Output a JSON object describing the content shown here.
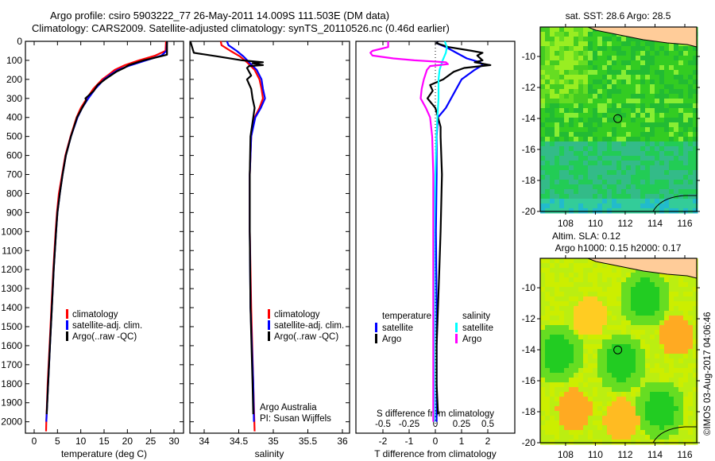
{
  "header": {
    "title_line1": "Argo profile: csiro 5903222_77 26-May-2011 14.009S 111.503E (DM data)",
    "title_line2": "Climatology: CARS2009. Satellite-adjusted climatology: synTS_20110526.nc (0.46d earlier)"
  },
  "colors": {
    "climatology": "#ff0000",
    "satellite": "#0000ff",
    "argo": "#000000",
    "salinity_satellite": "#00ffff",
    "salinity_argo": "#ff00ff",
    "land": "#ffcc99"
  },
  "chart_data": [
    {
      "id": "temperature",
      "type": "line",
      "xlabel": "temperature (deg C)",
      "ylabel": "",
      "xlim": [
        -2,
        32
      ],
      "ylim": [
        2060,
        0
      ],
      "xticks": [
        0,
        5,
        10,
        15,
        20,
        25,
        30
      ],
      "yticks": [
        0,
        100,
        200,
        300,
        400,
        500,
        600,
        700,
        800,
        900,
        1000,
        1100,
        1200,
        1300,
        1400,
        1500,
        1600,
        1700,
        1800,
        1900,
        2000
      ],
      "legend": [
        "climatology",
        "satellite-adj. clim.",
        "Argo(..raw -QC)"
      ],
      "legend_position": "center-left",
      "series": [
        {
          "name": "climatology",
          "color_key": "climatology",
          "depth": [
            0,
            50,
            75,
            100,
            125,
            150,
            175,
            200,
            250,
            300,
            350,
            400,
            500,
            600,
            700,
            800,
            900,
            1000,
            1200,
            1400,
            1600,
            1800,
            2000,
            2050
          ],
          "values": [
            28.3,
            28.2,
            26,
            22.5,
            19.5,
            17.3,
            16,
            14.6,
            12.7,
            11.3,
            10,
            9.1,
            7.8,
            6.7,
            6,
            5.3,
            4.9,
            4.6,
            4.1,
            3.7,
            3.3,
            2.9,
            2.6,
            2.55
          ]
        },
        {
          "name": "satellite-adj. clim.",
          "color_key": "satellite",
          "depth": [
            0,
            50,
            75,
            100,
            125,
            150,
            175,
            200,
            250,
            300,
            350,
            400,
            500,
            600,
            700,
            800,
            900,
            1000,
            1200,
            1400,
            1600,
            1800,
            2000
          ],
          "values": [
            28.5,
            28.4,
            27.3,
            24,
            20.8,
            18,
            16.4,
            15,
            13.1,
            11.6,
            10.3,
            9.3,
            7.9,
            6.8,
            6.1,
            5.5,
            5,
            4.7,
            4.2,
            3.8,
            3.4,
            3,
            2.6
          ]
        },
        {
          "name": "Argo(..raw -QC)",
          "color_key": "argo",
          "depth": [
            0,
            50,
            70,
            80,
            100,
            125,
            140,
            160,
            200,
            230,
            260,
            300,
            310,
            350,
            400,
            500,
            600,
            700,
            800,
            900,
            1000,
            1200,
            1400,
            1600,
            1800,
            1960
          ],
          "values": [
            28.5,
            28.5,
            28.5,
            27,
            23.5,
            20.3,
            19.3,
            17.6,
            15.2,
            13.6,
            12.8,
            11,
            11.2,
            10.3,
            9.2,
            7.9,
            6.8,
            6.1,
            5.5,
            5,
            4.7,
            4.2,
            3.8,
            3.4,
            3,
            2.7
          ]
        }
      ]
    },
    {
      "id": "salinity",
      "type": "line",
      "xlabel": "salinity",
      "xlim": [
        33.8,
        36.1
      ],
      "ylim": [
        2060,
        0
      ],
      "xticks": [
        34,
        34.5,
        35,
        35.5,
        36
      ],
      "legend": [
        "climatology",
        "satellite-adj. clim.",
        "Argo(..raw -QC)"
      ],
      "legend_position": "center-right",
      "annotation": [
        "Argo Australia",
        "PI: Susan Wijffels"
      ],
      "series": [
        {
          "name": "climatology",
          "color_key": "climatology",
          "depth": [
            0,
            20,
            50,
            80,
            110,
            150,
            200,
            250,
            300,
            350,
            400,
            500,
            700,
            1000,
            1400,
            1800,
            2050
          ],
          "values": [
            34.24,
            34.25,
            34.38,
            34.52,
            34.62,
            34.73,
            34.8,
            34.83,
            34.85,
            34.8,
            34.73,
            34.68,
            34.66,
            34.66,
            34.68,
            34.71,
            34.73
          ]
        },
        {
          "name": "satellite-adj. clim.",
          "color_key": "satellite",
          "depth": [
            0,
            20,
            50,
            80,
            110,
            150,
            200,
            250,
            300,
            350,
            400,
            500,
            700,
            1000,
            1400,
            1800,
            2000
          ],
          "values": [
            34.33,
            34.35,
            34.47,
            34.57,
            34.65,
            34.76,
            34.83,
            34.85,
            34.88,
            34.82,
            34.74,
            34.68,
            34.66,
            34.66,
            34.67,
            34.71,
            34.72
          ]
        },
        {
          "name": "Argo(..raw -QC)",
          "color_key": "argo",
          "depth": [
            0,
            60,
            80,
            100,
            110,
            115,
            125,
            130,
            140,
            180,
            200,
            250,
            300,
            350,
            400,
            500,
            700,
            1000,
            1400,
            1800,
            1960
          ],
          "values": [
            33.8,
            33.85,
            34.2,
            34.55,
            34.85,
            34.7,
            34.85,
            34.65,
            34.62,
            34.68,
            34.62,
            34.68,
            34.7,
            34.73,
            34.71,
            34.67,
            34.66,
            34.66,
            34.67,
            34.7,
            34.71
          ]
        }
      ]
    },
    {
      "id": "difference",
      "type": "line",
      "xlabel": "T difference from climatology",
      "xlabel_top": "S difference from climatology",
      "xlim": [
        -3,
        3
      ],
      "ylim": [
        2060,
        0
      ],
      "xticks": [
        -2,
        -1,
        0,
        1,
        2
      ],
      "xticks_top": [
        -0.5,
        -0.25,
        0,
        0.25,
        0.5
      ],
      "legend_temperature_title": "temperature",
      "legend_salinity_title": "salinity",
      "legend": [
        "satellite",
        "Argo",
        "satellite",
        "Argo"
      ],
      "legend_position": "center",
      "series": [
        {
          "name": "temperature satellite",
          "color_key": "satellite",
          "axis": "T",
          "depth": [
            0,
            10,
            30,
            60,
            90,
            110,
            125,
            150,
            200,
            250,
            300,
            350,
            400,
            500,
            700,
            1000,
            1400,
            1800,
            2000
          ],
          "values": [
            0.1,
            0.05,
            0.4,
            0.8,
            1.2,
            1.7,
            1.8,
            1.5,
            1.0,
            0.8,
            0.6,
            0.4,
            0.1,
            0.05,
            0.05,
            0.02,
            0.05,
            0.05,
            0.05
          ]
        },
        {
          "name": "temperature Argo",
          "color_key": "argo",
          "axis": "T",
          "depth": [
            0,
            10,
            30,
            50,
            60,
            75,
            100,
            110,
            125,
            140,
            160,
            200,
            230,
            260,
            300,
            350,
            400,
            450,
            500,
            700,
            1000,
            1200,
            1400,
            1600,
            1800,
            1960
          ],
          "values": [
            0.1,
            0.05,
            0.5,
            1.4,
            1.8,
            1.6,
            1.8,
            1.5,
            2.1,
            1.1,
            0.7,
            0.3,
            -0.2,
            -0.1,
            -0.3,
            0,
            0.1,
            0.2,
            0.2,
            0.25,
            0.2,
            0.15,
            0.1,
            0.05,
            0.05,
            0.1
          ]
        },
        {
          "name": "salinity satellite",
          "color_key": "salinity_satellite",
          "axis": "S",
          "depth": [
            0,
            30,
            60,
            100,
            150,
            200,
            300,
            400,
            500,
            700,
            1000,
            1400,
            1800,
            2000
          ],
          "values": [
            0.09,
            0.11,
            0.1,
            0.07,
            0.04,
            0.03,
            0.03,
            0.02,
            0.01,
            0.0,
            -0.01,
            -0.01,
            -0.01,
            -0.01
          ]
        },
        {
          "name": "salinity Argo",
          "color_key": "salinity_argo",
          "axis": "S",
          "depth": [
            0,
            30,
            50,
            60,
            75,
            90,
            100,
            110,
            120,
            130,
            150,
            200,
            250,
            300,
            350,
            400,
            500,
            700,
            1000,
            1400,
            1800,
            2000
          ],
          "values": [
            -0.45,
            -0.45,
            -0.6,
            -0.62,
            -0.6,
            -0.4,
            -0.2,
            0.1,
            0.12,
            -0.05,
            -0.08,
            -0.11,
            -0.13,
            -0.14,
            -0.09,
            -0.05,
            -0.03,
            -0.02,
            -0.02,
            -0.02,
            -0.02,
            -0.02
          ]
        }
      ]
    },
    {
      "id": "sst_map",
      "type": "heatmap",
      "title": "sat. SST: 28.6 Argo: 28.5",
      "xlim": [
        106.3,
        116.8
      ],
      "ylim": [
        -20,
        -8.1
      ],
      "xticks": [
        108,
        110,
        112,
        114,
        116
      ],
      "yticks": [
        -10,
        -12,
        -14,
        -16,
        -18,
        -20
      ],
      "ytick_labels": [
        "-10",
        "-12",
        "-14",
        "-16",
        "-18",
        "-20"
      ],
      "marker": {
        "lon": 111.503,
        "lat": -14.009
      }
    },
    {
      "id": "sla_map",
      "type": "heatmap",
      "title_line1": "Altim. SLA: 0.12",
      "title_line2": "Argo h1000: 0.15 h2000: 0.17",
      "xlim": [
        106.3,
        116.8
      ],
      "ylim": [
        -20,
        -8.1
      ],
      "xticks": [
        108,
        110,
        112,
        114,
        116
      ],
      "yticks": [
        -10,
        -12,
        -14,
        -16,
        -18,
        -20
      ],
      "ytick_labels": [
        "-10",
        "-12",
        "-14",
        "-16",
        "-18",
        "-20"
      ],
      "marker": {
        "lon": 111.503,
        "lat": -14.009
      }
    }
  ],
  "footer": {
    "copyright": "©IMOS 03-Aug-2017 04:06:46"
  }
}
